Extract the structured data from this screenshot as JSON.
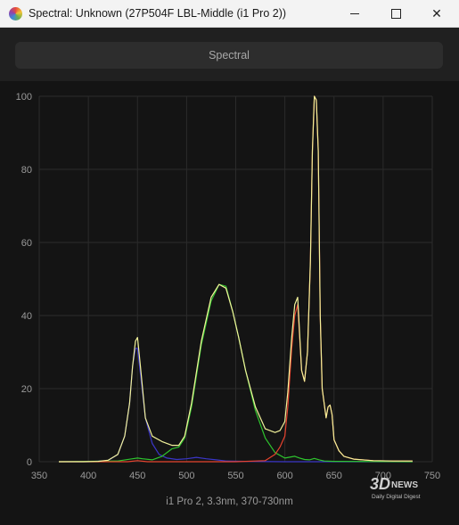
{
  "window": {
    "title": "Spectral: Unknown (27P504F LBL-Middle (i1 Pro 2))",
    "minimize_icon": "minimize-icon",
    "maximize_icon": "maximize-icon",
    "close_icon": "close-icon",
    "close_glyph": "✕"
  },
  "toolbar": {
    "spectral_label": "Spectral"
  },
  "chart_data": {
    "type": "line",
    "xlim": [
      350,
      750
    ],
    "ylim": [
      0,
      100
    ],
    "xticks": [
      350,
      400,
      450,
      500,
      550,
      600,
      650,
      700,
      750
    ],
    "yticks": [
      0,
      20,
      40,
      60,
      80,
      100
    ],
    "grid": true,
    "caption": "i1 Pro 2, 3.3nm, 370-730nm",
    "series": [
      {
        "color": "#f2f29a",
        "x": [
          370,
          395,
          410,
          420,
          430,
          437,
          442,
          445,
          448,
          450,
          453,
          458,
          465,
          475,
          485,
          492,
          498,
          505,
          515,
          525,
          533,
          540,
          547,
          553,
          560,
          570,
          580,
          590,
          595,
          600,
          603,
          607,
          610,
          613,
          617,
          620,
          623,
          626,
          628,
          630,
          632,
          634,
          636,
          638,
          640,
          642,
          644,
          646,
          648,
          650,
          655,
          660,
          670,
          690,
          710,
          730
        ],
        "y": [
          0,
          0,
          0.1,
          0.4,
          2,
          7,
          16,
          26,
          33,
          34,
          26,
          12,
          7,
          5.5,
          4.5,
          4.5,
          7,
          16,
          33,
          45,
          48.5,
          47.5,
          41,
          34,
          25,
          15,
          9,
          8,
          8.5,
          11,
          19,
          34,
          43,
          45,
          25,
          22,
          30,
          55,
          85,
          100,
          99,
          85,
          40,
          20,
          16,
          12,
          15,
          15.5,
          13,
          6,
          3,
          1.5,
          0.7,
          0.3,
          0.2,
          0.2
        ]
      },
      {
        "color": "#3b36c8",
        "x": [
          370,
          400,
          420,
          430,
          437,
          442,
          445,
          448,
          450,
          453,
          458,
          465,
          472,
          480,
          490,
          500,
          510,
          520,
          530,
          540,
          560,
          600,
          650,
          730
        ],
        "y": [
          0,
          0,
          0.3,
          2,
          7,
          16,
          26,
          31,
          31,
          24,
          12,
          5,
          2,
          1,
          0.6,
          0.8,
          1.2,
          0.8,
          0.5,
          0.2,
          0.1,
          0,
          0,
          0
        ]
      },
      {
        "color": "#2ec52e",
        "x": [
          370,
          430,
          445,
          450,
          455,
          465,
          475,
          485,
          492,
          498,
          505,
          515,
          525,
          533,
          540,
          547,
          553,
          560,
          570,
          580,
          590,
          600,
          610,
          615,
          620,
          625,
          630,
          635,
          640,
          650,
          730
        ],
        "y": [
          0,
          0.2,
          0.8,
          1,
          0.8,
          0.5,
          1.5,
          3.5,
          4,
          6.5,
          15,
          32,
          44,
          48.5,
          48,
          41,
          34,
          25,
          14,
          6.5,
          2.5,
          1,
          1.5,
          1,
          0.6,
          0.5,
          0.9,
          0.5,
          0.2,
          0.1,
          0
        ]
      },
      {
        "color": "#e8432e",
        "x": [
          370,
          440,
          450,
          460,
          550,
          580,
          590,
          595,
          600,
          603,
          607,
          610,
          613,
          617,
          620,
          623,
          626,
          628,
          630,
          632,
          634,
          636,
          638,
          640,
          642,
          644,
          646,
          648,
          650,
          655,
          660,
          670,
          690,
          710,
          730
        ],
        "y": [
          0,
          0,
          0.3,
          0,
          0,
          0.3,
          2,
          4,
          7,
          15,
          31,
          40,
          43,
          25,
          22,
          30,
          55,
          85,
          100,
          99,
          85,
          40,
          20,
          16,
          12,
          15,
          15.5,
          13,
          6,
          3,
          1.5,
          0.7,
          0.3,
          0.2,
          0.2
        ]
      }
    ]
  }
}
